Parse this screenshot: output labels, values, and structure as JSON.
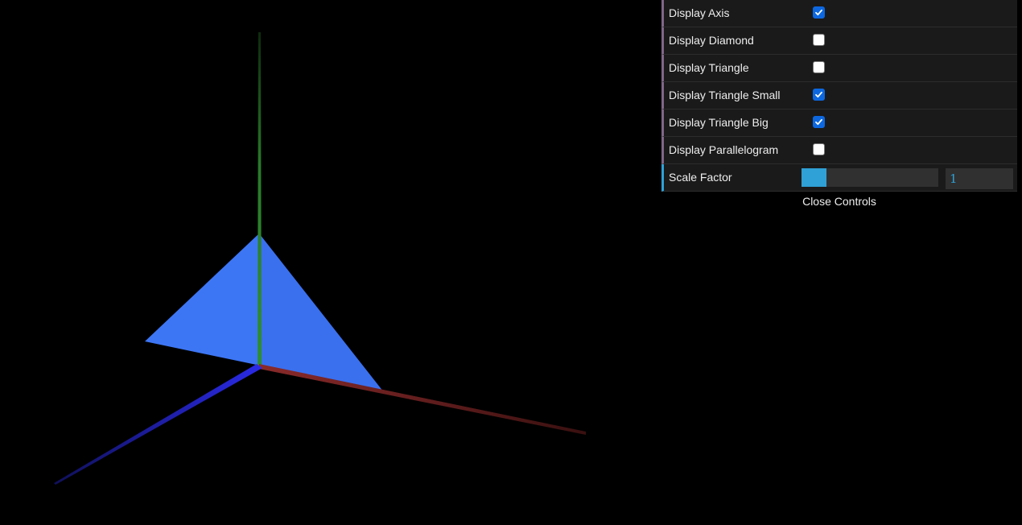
{
  "controls": [
    {
      "label": "Display Axis",
      "checked": true
    },
    {
      "label": "Display Diamond",
      "checked": false
    },
    {
      "label": "Display Triangle",
      "checked": false
    },
    {
      "label": "Display Triangle Small",
      "checked": true
    },
    {
      "label": "Display Triangle Big",
      "checked": true
    },
    {
      "label": "Display Parallelogram",
      "checked": false
    }
  ],
  "scale_factor": {
    "label": "Scale Factor",
    "value": "1",
    "fraction": 0.18
  },
  "close_label": "Close Controls",
  "scene": {
    "background": "#000000",
    "triangle_color": "#3d76f5",
    "x_axis_color": "#8a2a2a",
    "y_axis_color": "#2f8f2f",
    "z_axis_color": "#2a2ae6"
  },
  "colors": {
    "panel_bg": "#1a1a1a",
    "boolean_accent": "#806787",
    "number_accent": "#2fa1d6",
    "checkbox_checked": "#0d68e0"
  }
}
